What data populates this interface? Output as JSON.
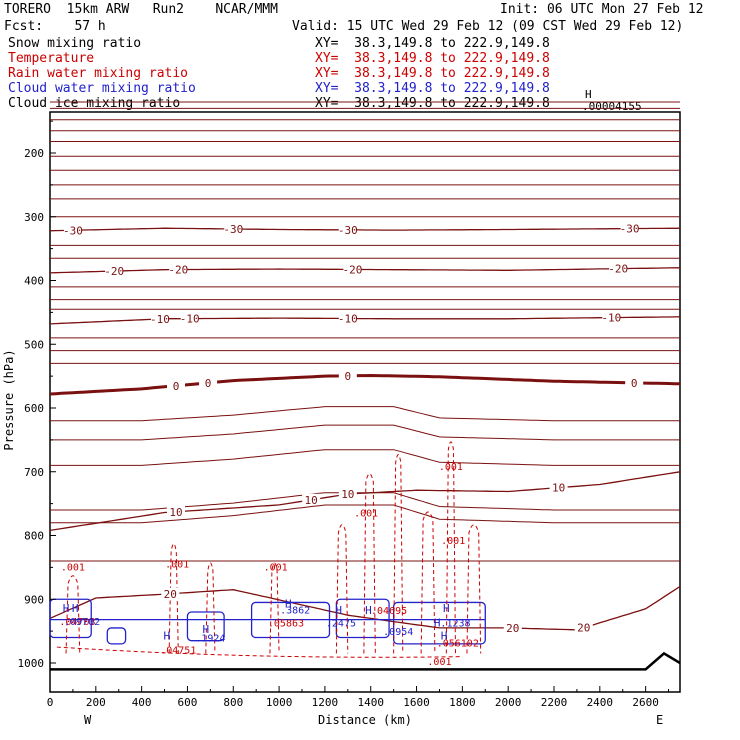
{
  "header": {
    "model": "TORERO  15km ARW   Run2    NCAR/MMM",
    "init": "Init: 06 UTC Mon 27 Feb 12",
    "fcst": "Fcst:    57 h",
    "valid": "Valid: 15 UTC Wed 29 Feb 12 (09 CST Wed 29 Feb 12)"
  },
  "fields": [
    {
      "name": "Snow mixing ratio",
      "color": "#000000",
      "xy": ""
    },
    {
      "name": "Temperature",
      "color": "#cc0000",
      "xy": ""
    },
    {
      "name": "Rain water mixing ratio",
      "color": "#cc0000",
      "xy": ""
    },
    {
      "name": "Cloud water mixing ratio",
      "color": "#2222cc",
      "xy": ""
    },
    {
      "name": "Cloud ice mixing ratio",
      "color": "#000000",
      "xy": ""
    }
  ],
  "xy_line": "XY=  38.3,149.8 to 222.9,149.8",
  "xy_lines": [
    "XY=  38.3,149.8 to 222.9,149.8",
    "XY=  38.3,149.8 to 222.9,149.8",
    "XY=  38.3,149.8 to 222.9,149.8",
    "XY=  38.3,149.8 to 222.9,149.8",
    "XY=  38.3,149.8 to 222.9,149.8"
  ],
  "top_right": {
    "h": "H",
    "value": ".00004155"
  },
  "chart_data": {
    "type": "line",
    "xlabel": "Distance (km)",
    "ylabel": "Pressure (hPa)",
    "xlim": [
      0,
      2750
    ],
    "ylim": [
      1010,
      100
    ],
    "x_ticks": [
      0,
      200,
      400,
      600,
      800,
      1000,
      1200,
      1400,
      1600,
      1800,
      2000,
      2200,
      2400,
      2600
    ],
    "y_ticks": [
      200,
      300,
      400,
      500,
      600,
      700,
      800,
      900,
      1000
    ],
    "x_ends": {
      "left": "W",
      "right": "E"
    },
    "temperature_isotherms": [
      {
        "level": -30,
        "x": [
          0,
          500,
          1000,
          1500,
          2000,
          2750
        ],
        "p": [
          322,
          318,
          320,
          321,
          320,
          318
        ],
        "labels": [
          {
            "text": "-30",
            "x": 100
          },
          {
            "text": "-30",
            "x": 800
          },
          {
            "text": "-30",
            "x": 1300
          },
          {
            "text": "-30",
            "x": 2530
          }
        ]
      },
      {
        "level": -20,
        "x": [
          0,
          500,
          1000,
          1500,
          2000,
          2750
        ],
        "p": [
          388,
          383,
          382,
          383,
          384,
          380
        ],
        "labels": [
          {
            "text": "-20",
            "x": 280
          },
          {
            "text": "-20",
            "x": 560
          },
          {
            "text": "-20",
            "x": 1320
          },
          {
            "text": "-20",
            "x": 2480
          }
        ]
      },
      {
        "level": -10,
        "x": [
          0,
          500,
          1000,
          1500,
          2000,
          2750
        ],
        "p": [
          468,
          460,
          459,
          460,
          460,
          457
        ],
        "labels": [
          {
            "text": "-10",
            "x": 480
          },
          {
            "text": "-10",
            "x": 610
          },
          {
            "text": "-10",
            "x": 1300
          },
          {
            "text": "-10",
            "x": 2450
          }
        ]
      },
      {
        "level": 0,
        "x": [
          0,
          400,
          800,
          1200,
          1400,
          1700,
          2200,
          2750
        ],
        "p": [
          578,
          570,
          557,
          550,
          549,
          551,
          558,
          562
        ],
        "labels": [
          {
            "text": "0",
            "x": 550
          },
          {
            "text": "0",
            "x": 690
          },
          {
            "text": "0",
            "x": 1300
          },
          {
            "text": "0",
            "x": 2550
          }
        ]
      },
      {
        "level": 10,
        "x": [
          0,
          500,
          1000,
          1300,
          1600,
          2000,
          2400,
          2750
        ],
        "p": [
          792,
          764,
          752,
          735,
          729,
          731,
          720,
          700
        ],
        "labels": [
          {
            "text": "10",
            "x": 550
          },
          {
            "text": "10",
            "x": 1140
          },
          {
            "text": "10",
            "x": 1300
          },
          {
            "text": "10",
            "x": 2220
          }
        ]
      },
      {
        "level": 20,
        "x": [
          0,
          200,
          500,
          800,
          1300,
          1700,
          2000,
          2300,
          2600,
          2750
        ],
        "p": [
          930,
          898,
          892,
          885,
          925,
          945,
          945,
          948,
          915,
          880
        ],
        "labels": [
          {
            "text": "20",
            "x": 525
          },
          {
            "text": "20",
            "x": 2020
          },
          {
            "text": "20",
            "x": 2330
          }
        ]
      }
    ],
    "ground_pressure": [
      {
        "x": 0,
        "p": 1010
      },
      {
        "x": 2600,
        "p": 1010
      },
      {
        "x": 2680,
        "p": 985
      },
      {
        "x": 2750,
        "p": 1000
      }
    ],
    "rain_water_labels": [
      {
        "text": ".001",
        "x": 100,
        "p": 855
      },
      {
        "text": ".001",
        "x": 555,
        "p": 850
      },
      {
        "text": ".001",
        "x": 985,
        "p": 855
      },
      {
        "text": ".001",
        "x": 1380,
        "p": 770
      },
      {
        "text": ".001",
        "x": 1750,
        "p": 697
      },
      {
        "text": ".001",
        "x": 1760,
        "p": 813
      },
      {
        "text": ".001",
        "x": 1700,
        "p": 1003
      },
      {
        "text": ".04695",
        "x": 1480,
        "p": 923
      },
      {
        "text": ".05863",
        "x": 1030,
        "p": 943
      },
      {
        "text": ".04751",
        "x": 560,
        "p": 985
      },
      {
        "text": ".056102",
        "x": 1780,
        "p": 974
      },
      {
        "text": ".04703",
        "x": 120,
        "p": 940
      }
    ],
    "cloud_water_labels": [
      {
        "text": ".3862",
        "x": 1070,
        "p": 922
      },
      {
        "text": ".2475",
        "x": 1270,
        "p": 943
      },
      {
        "text": ".0954",
        "x": 1520,
        "p": 956
      },
      {
        "text": ".1238",
        "x": 1770,
        "p": 943
      },
      {
        "text": ".1924",
        "x": 700,
        "p": 966
      },
      {
        "text": ".09702",
        "x": 140,
        "p": 940
      }
    ],
    "highs": [
      {
        "text": "H",
        "x": 70,
        "p": 920
      },
      {
        "text": "H",
        "x": 110,
        "p": 920
      },
      {
        "text": "H",
        "x": 680,
        "p": 953
      },
      {
        "text": "H",
        "x": 1040,
        "p": 913
      },
      {
        "text": "H",
        "x": 1260,
        "p": 923
      },
      {
        "text": "H",
        "x": 1390,
        "p": 923
      },
      {
        "text": "H",
        "x": 1690,
        "p": 943
      },
      {
        "text": "H",
        "x": 1730,
        "p": 920
      },
      {
        "text": "H",
        "x": 1720,
        "p": 963
      },
      {
        "text": "H",
        "x": 510,
        "p": 963
      }
    ]
  }
}
